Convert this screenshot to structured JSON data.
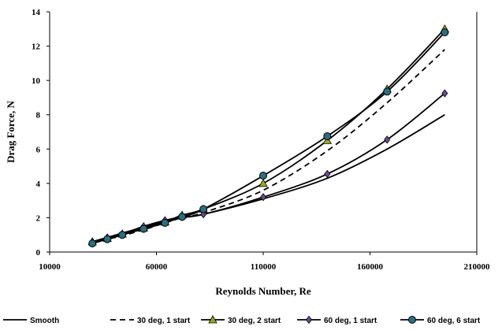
{
  "chart_data": {
    "type": "line",
    "title": "",
    "xlabel": "Reynolds Number, Re",
    "ylabel": "Drag Force, N",
    "xlim": [
      10000,
      210000
    ],
    "ylim": [
      0,
      14
    ],
    "xticks": [
      "10000",
      "60000",
      "110000",
      "160000",
      "210000"
    ],
    "yticks": [
      "0",
      "2",
      "4",
      "6",
      "8",
      "10",
      "12",
      "14"
    ],
    "grid": false,
    "legend_position": "bottom",
    "series": [
      {
        "name": "Smooth",
        "style": "solid",
        "marker": "none",
        "color": "#000000",
        "x": [
          30000,
          37000,
          44000,
          54000,
          64000,
          72000,
          82000,
          110000,
          140000,
          168000,
          195000
        ],
        "y": [
          0.6,
          0.85,
          1.1,
          1.45,
          1.8,
          2.0,
          2.2,
          3.1,
          4.3,
          6.0,
          8.0
        ]
      },
      {
        "name": "30 deg, 1 start",
        "style": "dashed",
        "marker": "none",
        "color": "#000000",
        "x": [
          30000,
          37000,
          44000,
          54000,
          64000,
          72000,
          82000,
          110000,
          140000,
          168000,
          195000
        ],
        "y": [
          0.55,
          0.75,
          0.95,
          1.3,
          1.7,
          2.0,
          2.3,
          3.6,
          5.9,
          8.7,
          11.8
        ]
      },
      {
        "name": "30 deg, 2 start",
        "style": "solid",
        "marker": "triangle",
        "color": "#000000",
        "marker_fill": "#9aa81e",
        "x": [
          30000,
          37000,
          44000,
          54000,
          64000,
          72000,
          82000,
          110000,
          140000,
          168000,
          195000
        ],
        "y": [
          0.6,
          0.8,
          1.05,
          1.4,
          1.75,
          2.15,
          2.5,
          4.0,
          6.5,
          9.5,
          13.0
        ]
      },
      {
        "name": "60 deg, 1 start",
        "style": "solid",
        "marker": "diamond",
        "color": "#000000",
        "marker_fill": "#6a4c93",
        "x": [
          30000,
          37000,
          44000,
          54000,
          64000,
          72000,
          82000,
          110000,
          140000,
          168000,
          195000
        ],
        "y": [
          0.6,
          0.85,
          1.05,
          1.5,
          1.85,
          2.05,
          2.2,
          3.2,
          4.55,
          6.55,
          9.25
        ]
      },
      {
        "name": "60 deg, 6 start",
        "style": "solid",
        "marker": "circle",
        "color": "#000000",
        "marker_fill": "#2c6e7f",
        "x": [
          30000,
          37000,
          44000,
          54000,
          64000,
          72000,
          82000,
          110000,
          140000,
          168000,
          195000
        ],
        "y": [
          0.5,
          0.75,
          1.0,
          1.35,
          1.7,
          2.05,
          2.5,
          4.45,
          6.75,
          9.35,
          12.8
        ]
      }
    ]
  }
}
